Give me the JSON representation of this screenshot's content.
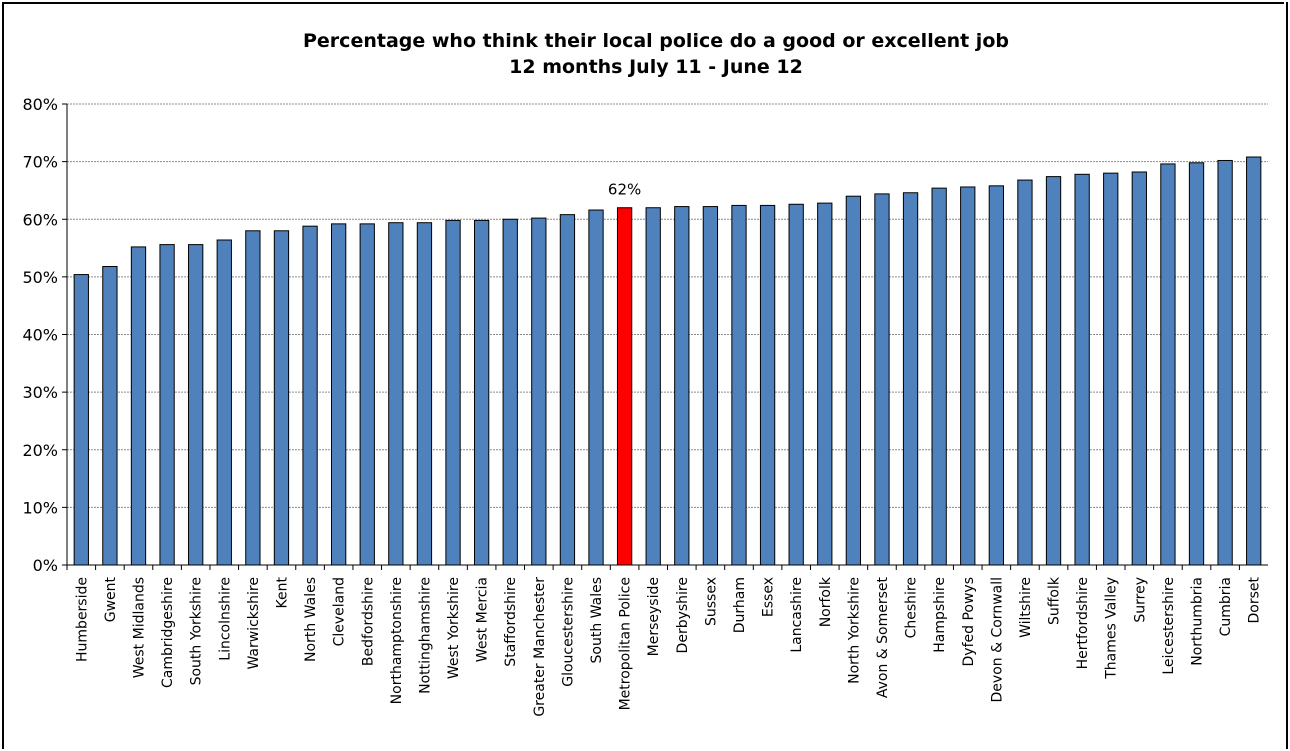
{
  "chart_data": {
    "type": "bar",
    "title": "Percentage who think their local police do a good or excellent job",
    "subtitle": "12 months July 11 - June 12",
    "xlabel": "",
    "ylabel": "",
    "ylim": [
      0,
      80
    ],
    "yticks": [
      "0%",
      "10%",
      "20%",
      "30%",
      "40%",
      "50%",
      "60%",
      "70%",
      "80%"
    ],
    "grid": true,
    "legend": "none",
    "bar_color": "#4f81bd",
    "highlight_color": "#ff0000",
    "highlight_category": "Metropolitan Police",
    "data_label": "62%",
    "categories": [
      "Humberside",
      "Gwent",
      "West Midlands",
      "Cambridgeshire",
      "South Yorkshire",
      "Lincolnshire",
      "Warwickshire",
      "Kent",
      "North Wales",
      "Cleveland",
      "Bedfordshire",
      "Northamptonshire",
      "Nottinghamshire",
      "West Yorkshire",
      "West Mercia",
      "Staffordshire",
      "Greater Manchester",
      "Gloucestershire",
      "South Wales",
      "Metropolitan Police",
      "Merseyside",
      "Derbyshire",
      "Sussex",
      "Durham",
      "Essex",
      "Lancashire",
      "Norfolk",
      "North Yorkshire",
      "Avon & Somerset",
      "Cheshire",
      "Hampshire",
      "Dyfed Powys",
      "Devon & Cornwall",
      "Wiltshire",
      "Suffolk",
      "Hertfordshire",
      "Thames Valley",
      "Surrey",
      "Leicestershire",
      "Northumbria",
      "Cumbria",
      "Dorset"
    ],
    "values": [
      50.4,
      51.8,
      55.2,
      55.6,
      55.6,
      56.4,
      58.0,
      58.0,
      58.8,
      59.2,
      59.2,
      59.4,
      59.4,
      59.8,
      59.8,
      60.0,
      60.2,
      60.8,
      61.6,
      62.0,
      62.0,
      62.2,
      62.2,
      62.4,
      62.4,
      62.6,
      62.8,
      64.0,
      64.4,
      64.6,
      65.4,
      65.6,
      65.8,
      66.8,
      67.4,
      67.8,
      68.0,
      68.2,
      69.6,
      69.8,
      70.2,
      70.8
    ]
  }
}
